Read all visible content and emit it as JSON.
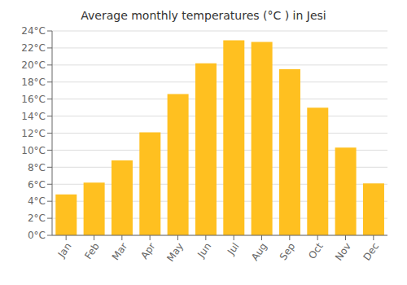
{
  "chart_data": {
    "type": "bar",
    "title": "Average monthly temperatures (°C ) in Jesi",
    "categories": [
      "Jan",
      "Feb",
      "Mar",
      "Apr",
      "May",
      "Jun",
      "Jul",
      "Aug",
      "Sep",
      "Oct",
      "Nov",
      "Dec"
    ],
    "values": [
      4.8,
      6.2,
      8.8,
      12.1,
      16.6,
      20.2,
      22.9,
      22.7,
      19.5,
      15.0,
      10.3,
      6.1
    ],
    "color": "#FFC020",
    "ylim": [
      0,
      24
    ],
    "yticks": [
      {
        "value": 0,
        "label": "0°C"
      },
      {
        "value": 2,
        "label": "2°C"
      },
      {
        "value": 4,
        "label": "4°C"
      },
      {
        "value": 6,
        "label": "6°C"
      },
      {
        "value": 8,
        "label": "8°C"
      },
      {
        "value": 10,
        "label": "10°C"
      },
      {
        "value": 12,
        "label": "12°C"
      },
      {
        "value": 14,
        "label": "14°C"
      },
      {
        "value": 16,
        "label": "16°C"
      },
      {
        "value": 18,
        "label": "18°C"
      },
      {
        "value": 20,
        "label": "20°C"
      },
      {
        "value": 22,
        "label": "22°C"
      },
      {
        "value": 24,
        "label": "24°C"
      }
    ],
    "grid": true
  }
}
